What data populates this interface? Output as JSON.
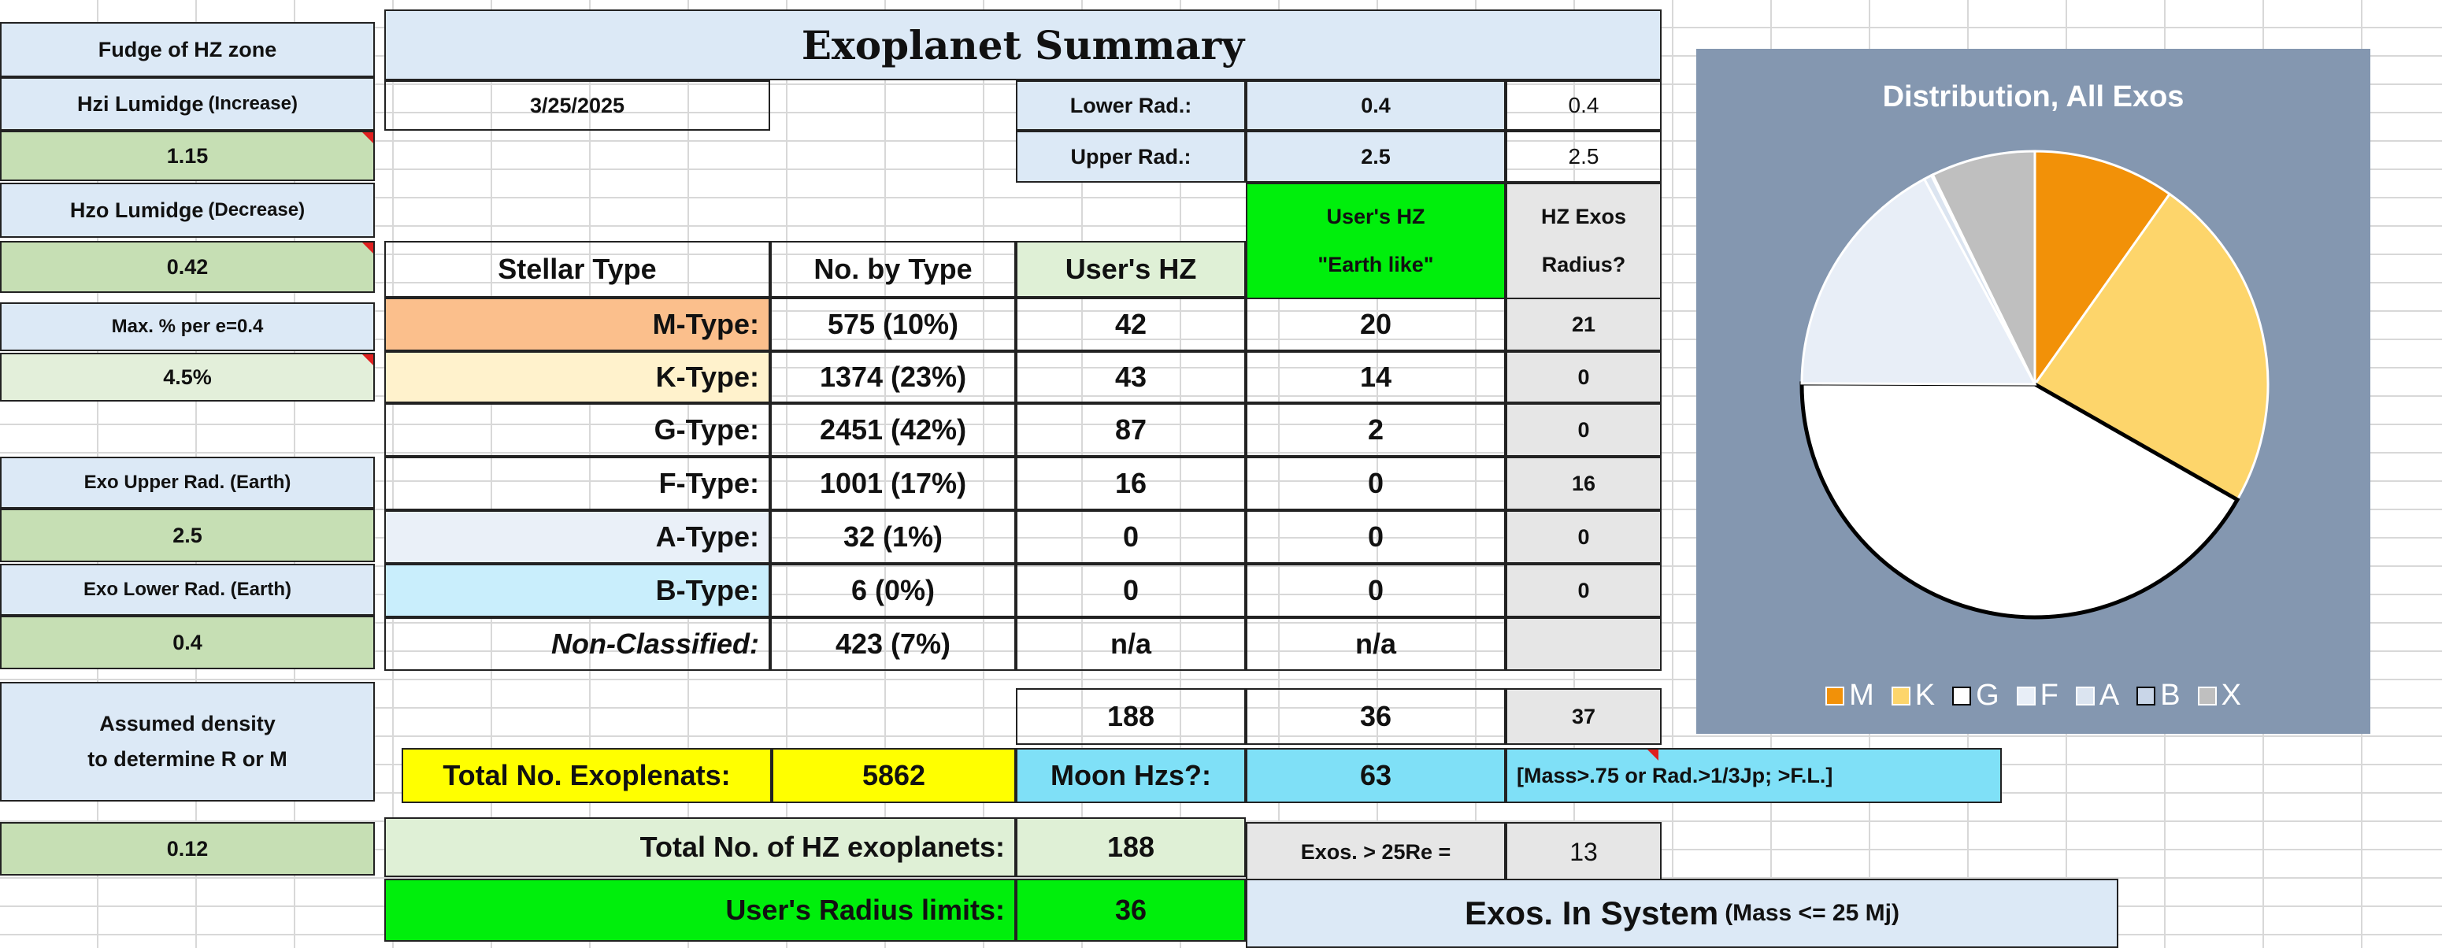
{
  "left_panel": {
    "hz_fudge_label": "Fudge of HZ zone",
    "hzi_label": "Hzi Lumidge",
    "hzi_suffix": "(Increase)",
    "hzi_value": "1.15",
    "hzo_label": "Hzo Lumidge",
    "hzo_suffix": "(Decrease)",
    "hzo_value": "0.42",
    "max_pct_label": "Max. % per e=0.4",
    "max_pct_value": "4.5%",
    "exo_upper_label": "Exo Upper Rad. (Earth)",
    "exo_upper_value": "2.5",
    "exo_lower_label": "Exo Lower Rad. (Earth)",
    "exo_lower_value": "0.4",
    "density_label_1": "Assumed density",
    "density_label_2": "to determine R or M",
    "density_value": "0.12"
  },
  "summary": {
    "title": "Exoplanet Summary",
    "date": "3/25/2025",
    "lower_rad_label": "Lower Rad.:",
    "lower_rad_value": "0.4",
    "lower_rad_small": "0.4",
    "upper_rad_label": "Upper Rad.:",
    "upper_rad_value": "2.5",
    "upper_rad_small": "2.5",
    "headers": {
      "stellar_type": "Stellar Type",
      "no_by_type": "No. by Type",
      "users_hz": "User's HZ",
      "earth_like_1": "User's HZ",
      "earth_like_2": "\"Earth like\"",
      "hz_exos_1": "HZ Exos",
      "hz_exos_2": "Radius?"
    },
    "rows": [
      {
        "type": "M-Type:",
        "count": "575  (10%)",
        "hz": "42",
        "earth": "20",
        "radius": "21"
      },
      {
        "type": "K-Type:",
        "count": "1374  (23%)",
        "hz": "43",
        "earth": "14",
        "radius": "0"
      },
      {
        "type": "G-Type:",
        "count": "2451  (42%)",
        "hz": "87",
        "earth": "2",
        "radius": "0"
      },
      {
        "type": "F-Type:",
        "count": "1001  (17%)",
        "hz": "16",
        "earth": "0",
        "radius": "16"
      },
      {
        "type": "A-Type:",
        "count": "32  (1%)",
        "hz": "0",
        "earth": "0",
        "radius": "0"
      },
      {
        "type": "B-Type:",
        "count": "6  (0%)",
        "hz": "0",
        "earth": "0",
        "radius": "0"
      },
      {
        "type": "Non-Classified:",
        "count": "423  (7%)",
        "hz": "n/a",
        "earth": "n/a",
        "radius": ""
      }
    ],
    "totals": {
      "hz": "188",
      "earth": "36",
      "radius": "37"
    },
    "total_exo_label": "Total No. Exoplenats:",
    "total_exo_value": "5862",
    "moon_label": "Moon Hzs?:",
    "moon_value": "63",
    "mass_note": "[Mass>.75 or Rad.>1/3Jp; >F.L.]",
    "total_hz_label": "Total No. of HZ exoplanets:",
    "total_hz_value": "188",
    "exos25_label": "Exos. > 25Re =",
    "exos25_value": "13",
    "radius_limits_label": "User's Radius limits:",
    "radius_limits_value": "36",
    "in_system_label": "Exos. In System",
    "in_system_suffix": "(Mass <= 25 Mj)"
  },
  "chart_data": {
    "type": "pie",
    "title": "Distribution, All Exos",
    "categories": [
      "M",
      "K",
      "G",
      "F",
      "A",
      "B",
      "X"
    ],
    "values": [
      575,
      1374,
      2451,
      1001,
      32,
      6,
      423
    ],
    "colors": [
      "#f29108",
      "#fdd56b",
      "#ffffff",
      "#e8eef7",
      "#dbe4f0",
      "#c9d6e8",
      "#bfbfbf"
    ],
    "legend_position": "bottom"
  }
}
